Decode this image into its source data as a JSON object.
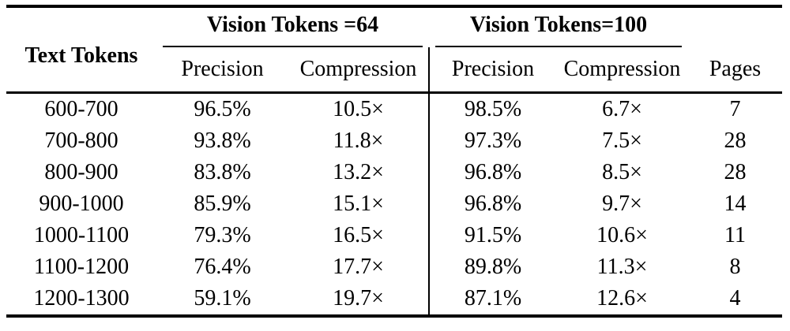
{
  "table": {
    "row_header": "Text Tokens",
    "groups": [
      "Vision Tokens =64",
      "Vision Tokens=100"
    ],
    "sub_headers": [
      "Precision",
      "Compression",
      "Precision",
      "Compression",
      "Pages"
    ],
    "rows": [
      [
        "600-700",
        "96.5%",
        "10.5×",
        "98.5%",
        "6.7×",
        "7"
      ],
      [
        "700-800",
        "93.8%",
        "11.8×",
        "97.3%",
        "7.5×",
        "28"
      ],
      [
        "800-900",
        "83.8%",
        "13.2×",
        "96.8%",
        "8.5×",
        "28"
      ],
      [
        "900-1000",
        "85.9%",
        "15.1×",
        "96.8%",
        "9.7×",
        "14"
      ],
      [
        "1000-1100",
        "79.3%",
        "16.5×",
        "91.5%",
        "10.6×",
        "11"
      ],
      [
        "1100-1200",
        "76.4%",
        "17.7×",
        "89.8%",
        "11.3×",
        "8"
      ],
      [
        "1200-1300",
        "59.1%",
        "19.7×",
        "87.1%",
        "12.6×",
        "4"
      ]
    ]
  },
  "colors": {
    "text": "#000000",
    "background": "#ffffff",
    "rule": "#000000"
  }
}
